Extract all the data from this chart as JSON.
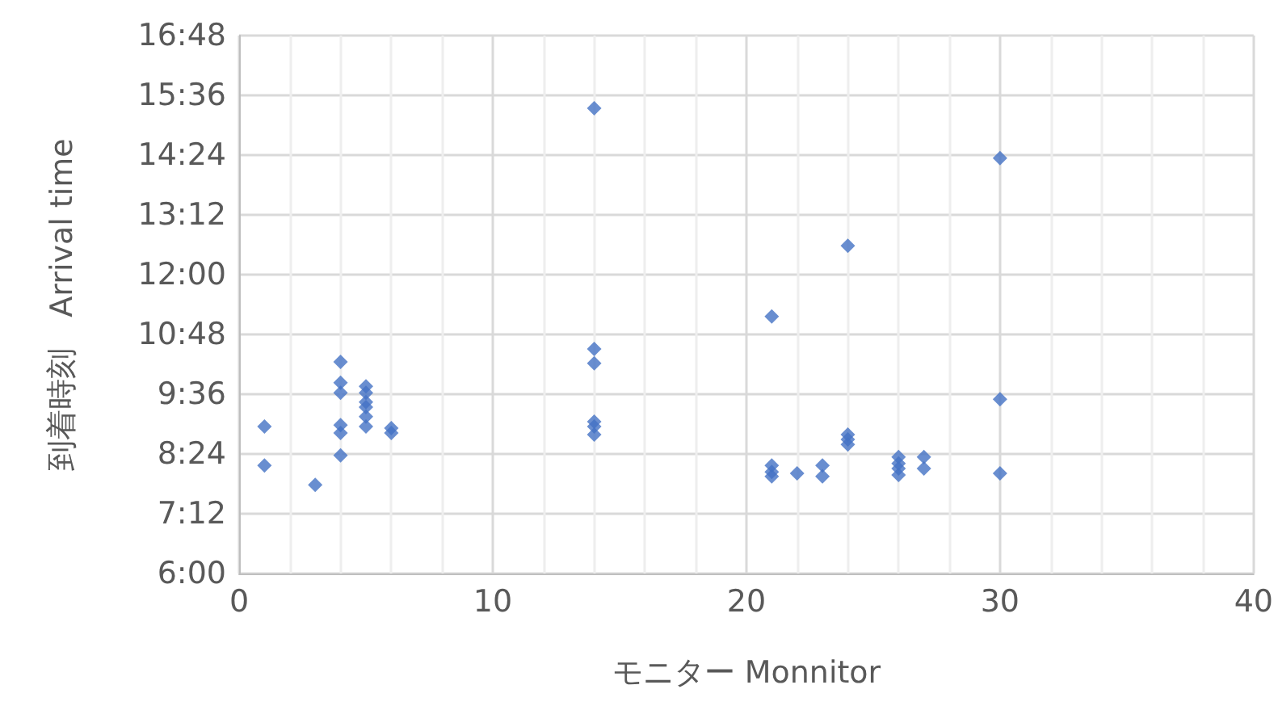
{
  "chart_data": {
    "type": "scatter",
    "xlabel": "モニター Monnitor",
    "ylabel": "到着時刻　Arrival time",
    "x": [
      1,
      1,
      3,
      4,
      4,
      4,
      4,
      4,
      4,
      5,
      5,
      5,
      5,
      5,
      5,
      6,
      6,
      14,
      14,
      14,
      14,
      14,
      14,
      21,
      21,
      21,
      21,
      22,
      23,
      23,
      24,
      24,
      24,
      24,
      26,
      26,
      26,
      26,
      27,
      27,
      30,
      30,
      30
    ],
    "values": [
      8.95,
      8.17,
      7.78,
      10.25,
      9.83,
      9.63,
      8.98,
      8.82,
      8.37,
      9.76,
      9.63,
      9.44,
      9.34,
      9.15,
      8.95,
      8.92,
      8.82,
      15.34,
      10.51,
      10.22,
      9.05,
      8.95,
      8.79,
      11.16,
      8.17,
      8.04,
      7.95,
      8.01,
      8.17,
      7.95,
      12.58,
      8.79,
      8.69,
      8.59,
      8.34,
      8.21,
      8.11,
      7.98,
      8.34,
      8.11,
      14.34,
      9.5,
      8.01
    ],
    "color": "#4472c4",
    "marker": "diamond",
    "grid": true,
    "xlim": [
      0,
      40
    ],
    "xticks": [
      0,
      10,
      20,
      30,
      40
    ],
    "ylim": [
      6,
      16.8
    ],
    "yticks": [
      {
        "value": 6,
        "label": "6:00"
      },
      {
        "value": 7.2,
        "label": "7:12"
      },
      {
        "value": 8.4,
        "label": "8:24"
      },
      {
        "value": 9.6,
        "label": "9:36"
      },
      {
        "value": 10.8,
        "label": "10:48"
      },
      {
        "value": 12,
        "label": "12:00"
      },
      {
        "value": 13.2,
        "label": "13:12"
      },
      {
        "value": 14.4,
        "label": "14:24"
      },
      {
        "value": 15.6,
        "label": "15:36"
      },
      {
        "value": 16.8,
        "label": "16:48"
      }
    ]
  }
}
